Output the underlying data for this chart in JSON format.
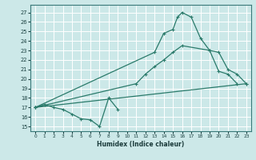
{
  "xlabel": "Humidex (Indice chaleur)",
  "bg_color": "#cce8e8",
  "line_color": "#2a7a6a",
  "grid_color": "#ffffff",
  "xlim": [
    -0.5,
    23.5
  ],
  "ylim": [
    14.5,
    27.8
  ],
  "yticks": [
    15,
    16,
    17,
    18,
    19,
    20,
    21,
    22,
    23,
    24,
    25,
    26,
    27
  ],
  "xticks": [
    0,
    1,
    2,
    3,
    4,
    5,
    6,
    7,
    8,
    9,
    10,
    11,
    12,
    13,
    14,
    15,
    16,
    17,
    18,
    19,
    20,
    21,
    22,
    23
  ],
  "line1_x": [
    0,
    1,
    2,
    3,
    4,
    5,
    6,
    7,
    8,
    9
  ],
  "line1_y": [
    17.0,
    17.3,
    17.0,
    16.8,
    16.3,
    15.8,
    15.7,
    15.0,
    18.0,
    16.8
  ],
  "line2_x": [
    0,
    13,
    14,
    15,
    15.5,
    16,
    17,
    18,
    19,
    20,
    21,
    22
  ],
  "line2_y": [
    17.0,
    22.8,
    24.8,
    25.2,
    26.5,
    27.0,
    26.5,
    24.3,
    23.0,
    20.8,
    20.5,
    19.5
  ],
  "line3_x": [
    0,
    11,
    12,
    13,
    14,
    15,
    16,
    19,
    20,
    21,
    22,
    23
  ],
  "line3_y": [
    17.0,
    19.5,
    20.5,
    21.3,
    22.0,
    22.8,
    23.5,
    23.0,
    22.8,
    21.0,
    20.5,
    19.5
  ],
  "line4_x": [
    0,
    23
  ],
  "line4_y": [
    17.0,
    19.5
  ]
}
